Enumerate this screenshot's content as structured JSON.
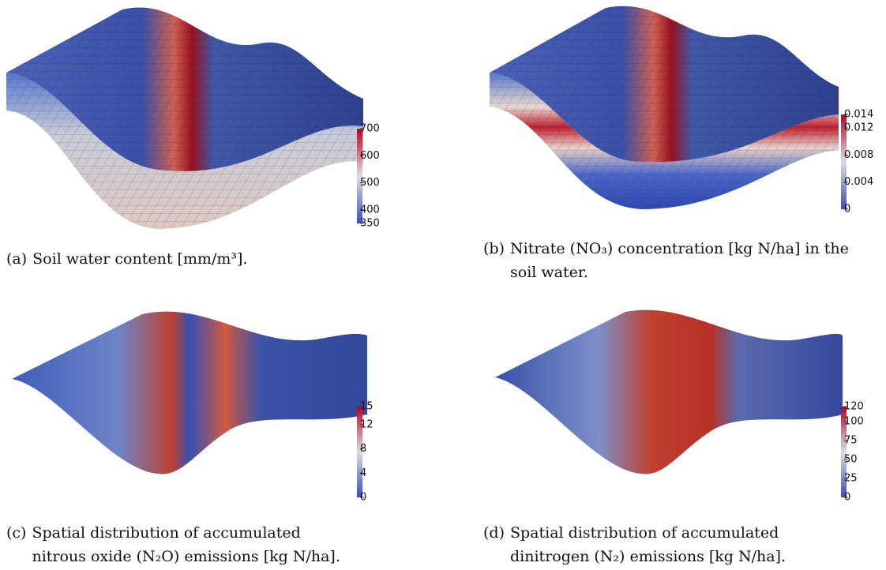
{
  "panels": [
    {
      "label": "(a)",
      "caption": "Soil water content [mm/m³].",
      "colorbar": {
        "lim": [
          350,
          700
        ],
        "ticks": [
          700,
          600,
          500,
          400,
          350
        ]
      }
    },
    {
      "label": "(b)",
      "caption": "Nitrate (NO₃) concentration [kg N/ha] in the soil water.",
      "colorbar": {
        "lim": [
          0,
          0.014
        ],
        "ticks": [
          0.014,
          0.012,
          0.008,
          0.004,
          0
        ]
      }
    },
    {
      "label": "(c)",
      "caption": "Spatial distribution of accumulated nitrous oxide (N₂O) emissions [kg N/ha].",
      "colorbar": {
        "lim": [
          0,
          15
        ],
        "ticks": [
          15,
          12,
          8,
          4,
          0
        ]
      }
    },
    {
      "label": "(d)",
      "caption": "Spatial distribution of accumulated dinitrogen (N₂) emissions [kg N/ha].",
      "colorbar": {
        "lim": [
          0,
          120
        ],
        "ticks": [
          120,
          100,
          75,
          50,
          25,
          0
        ]
      }
    }
  ]
}
